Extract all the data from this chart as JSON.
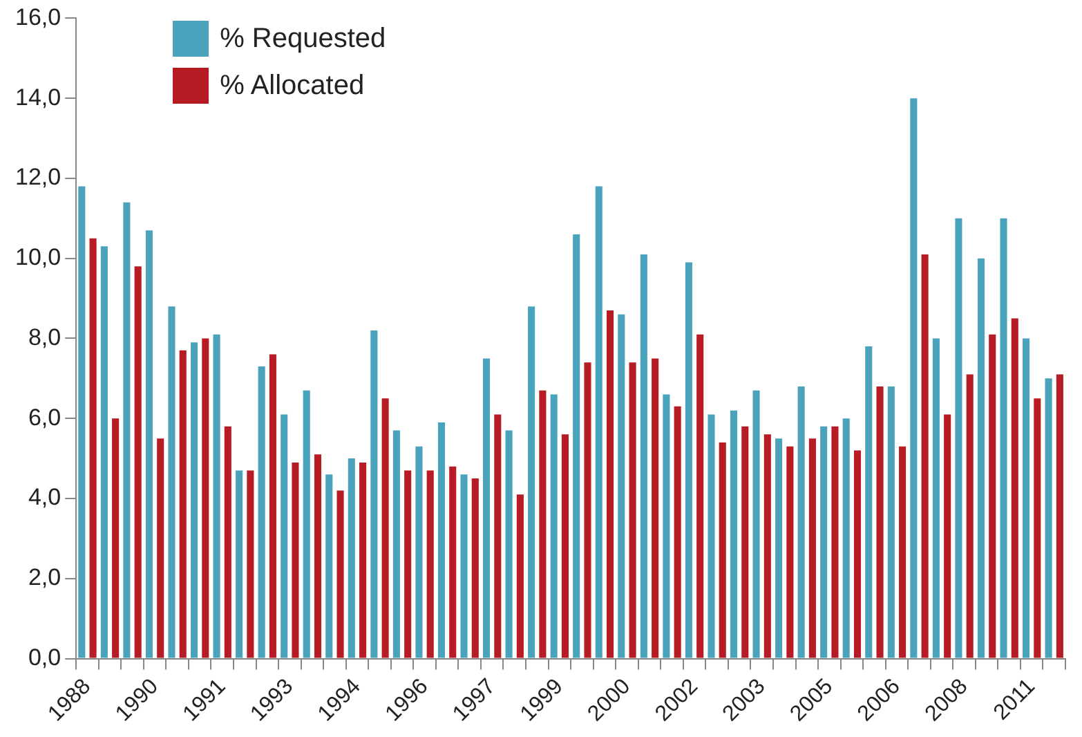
{
  "chart_data": {
    "type": "bar",
    "categories": [
      "1988",
      null,
      null,
      "1990",
      null,
      null,
      "1991",
      null,
      null,
      "1993",
      null,
      null,
      "1994",
      null,
      null,
      "1996",
      null,
      null,
      "1997",
      null,
      null,
      "1999",
      null,
      null,
      "2000",
      null,
      null,
      "2002",
      null,
      null,
      "2003",
      null,
      null,
      "2005",
      null,
      null,
      "2006",
      null,
      null,
      "2008",
      null,
      null,
      "2011",
      null
    ],
    "series": [
      {
        "name": "% Requested",
        "color": "#4aa3bd",
        "values": [
          11.8,
          10.3,
          11.4,
          10.7,
          8.8,
          7.9,
          8.1,
          4.7,
          7.3,
          6.1,
          6.7,
          4.6,
          5.0,
          8.2,
          5.7,
          5.3,
          5.9,
          4.6,
          7.5,
          5.7,
          8.8,
          6.6,
          10.6,
          11.8,
          8.6,
          10.1,
          6.6,
          9.9,
          6.1,
          6.2,
          6.7,
          5.5,
          6.8,
          5.8,
          6.0,
          7.8,
          6.8,
          14.0,
          8.0,
          11.0,
          10.0,
          11.0,
          8.0,
          7.0
        ]
      },
      {
        "name": "% Allocated",
        "color": "#b71c25",
        "values": [
          10.5,
          6.0,
          9.8,
          5.5,
          7.7,
          8.0,
          5.8,
          4.7,
          7.6,
          4.9,
          5.1,
          4.2,
          4.9,
          6.5,
          4.7,
          4.7,
          4.8,
          4.5,
          6.1,
          4.1,
          6.7,
          5.6,
          7.4,
          8.7,
          7.4,
          7.5,
          6.3,
          8.1,
          5.4,
          5.8,
          5.6,
          5.3,
          5.5,
          5.8,
          5.2,
          6.8,
          5.3,
          10.1,
          6.1,
          7.1,
          8.1,
          8.5,
          6.5,
          7.1
        ]
      }
    ],
    "ylim": [
      0,
      16
    ],
    "yticks": [
      {
        "value": 0,
        "label": "0,0"
      },
      {
        "value": 2,
        "label": "2,0"
      },
      {
        "value": 4,
        "label": "4,0"
      },
      {
        "value": 6,
        "label": "6,0"
      },
      {
        "value": 8,
        "label": "8,0"
      },
      {
        "value": 10,
        "label": "10,0"
      },
      {
        "value": 12,
        "label": "12,0"
      },
      {
        "value": 14,
        "label": "14,0"
      },
      {
        "value": 16,
        "label": "16,0"
      }
    ],
    "grid": false,
    "legend": "top left"
  }
}
